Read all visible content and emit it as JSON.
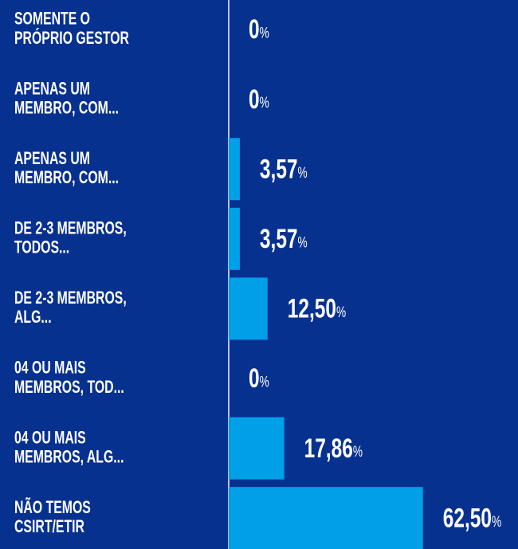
{
  "chart_data": {
    "type": "bar",
    "orientation": "horizontal",
    "categories": [
      "SOMENTE O PRÓPRIO GESTOR",
      "APENAS UM MEMBRO, COM...",
      "APENAS UM MEMBRO, COM...",
      "DE 2-3 MEMBROS, TODOS...",
      "DE 2-3 MEMBROS, ALG...",
      "04 OU MAIS MEMBROS, TOD...",
      "04 OU MAIS MEMBROS, ALG...",
      "NÃO TEMOS CSIRT/ETIR"
    ],
    "values": [
      0,
      0,
      3.57,
      3.57,
      12.5,
      0,
      17.86,
      62.5
    ],
    "value_labels": [
      "0%",
      "0%",
      "3,57%",
      "3,57%",
      "12,50%",
      "0%",
      "17,86%",
      "62,50%"
    ],
    "color": "#00a0e9",
    "xlim": [
      0,
      100
    ]
  }
}
